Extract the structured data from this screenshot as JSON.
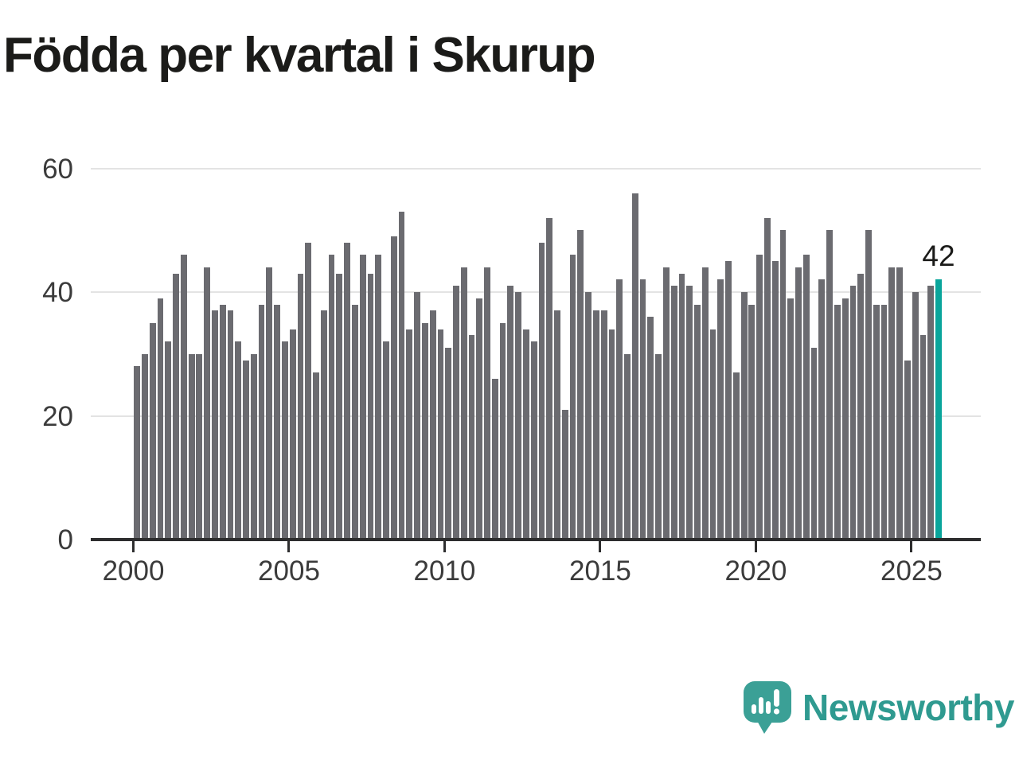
{
  "title": "Födda per kvartal i Skurup",
  "annotation": {
    "label": "42"
  },
  "branding": {
    "name": "Newsworthy",
    "icon": "newsworthy-chart-bubble-icon"
  },
  "colors": {
    "bar": "#6b6b70",
    "highlight": "#09a59b",
    "axis": "#2d2d2e",
    "grid": "#e3e3e3",
    "tick_text": "#3b3b3b",
    "title_text": "#1b1b19",
    "annotation_text": "#1b1b19",
    "logo_bubble": "#3ba096",
    "logo_text": "#2f9a90"
  },
  "chart_data": {
    "type": "bar",
    "title": "Födda per kvartal i Skurup",
    "x_start": "2000-Q1",
    "x_freq": "quarter",
    "x_end": "2025-Q4",
    "values": [
      28,
      30,
      35,
      39,
      32,
      43,
      46,
      30,
      30,
      44,
      37,
      38,
      37,
      32,
      29,
      30,
      38,
      44,
      38,
      32,
      34,
      43,
      48,
      27,
      37,
      46,
      43,
      48,
      38,
      46,
      43,
      46,
      32,
      49,
      53,
      34,
      40,
      35,
      37,
      34,
      31,
      41,
      44,
      33,
      39,
      44,
      26,
      35,
      41,
      40,
      34,
      32,
      48,
      52,
      37,
      21,
      46,
      50,
      40,
      37,
      37,
      34,
      42,
      30,
      56,
      42,
      36,
      30,
      44,
      41,
      43,
      41,
      38,
      44,
      34,
      42,
      45,
      27,
      40,
      38,
      46,
      52,
      45,
      50,
      39,
      44,
      46,
      31,
      42,
      50,
      38,
      39,
      41,
      43,
      50,
      38,
      38,
      44,
      44,
      29,
      40,
      33,
      41,
      42
    ],
    "highlight_last": true,
    "highlight_value": 42,
    "xlabel": "",
    "ylabel": "",
    "ylim": [
      0,
      60
    ],
    "yticks": [
      0,
      20,
      40,
      60
    ],
    "xticks": [
      2000,
      2005,
      2010,
      2015,
      2020,
      2025
    ],
    "grid": true,
    "legend": "none"
  }
}
